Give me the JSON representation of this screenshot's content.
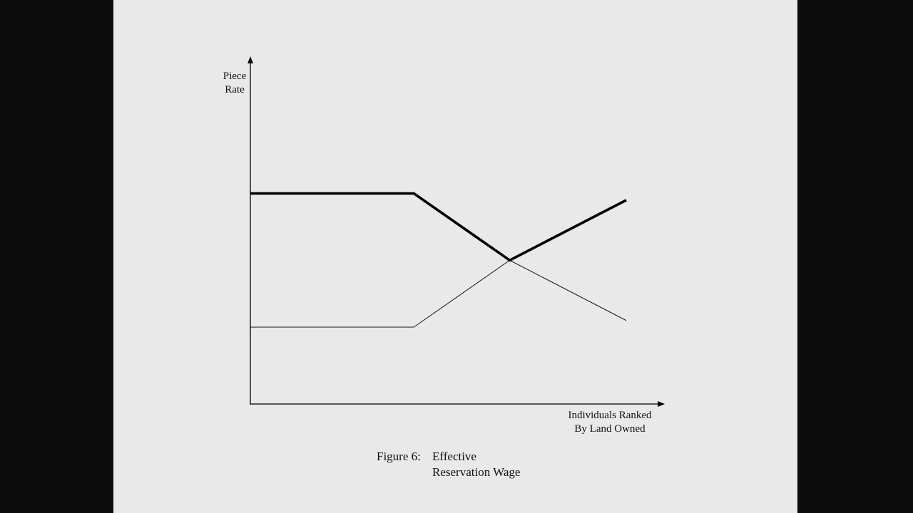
{
  "chart_data": {
    "type": "line",
    "title": "Figure 6:",
    "title_text": [
      "Effective",
      "Reservation Wage"
    ],
    "ylabel": [
      "Piece",
      "Rate"
    ],
    "xlabel": [
      "Individuals Ranked",
      "By Land Owned"
    ],
    "xlim": [
      0,
      100
    ],
    "ylim": [
      0,
      100
    ],
    "grid": false,
    "legend": "none",
    "series": [
      {
        "style": "bold",
        "x": [
          0,
          43.5,
          69,
          100
        ],
        "y": [
          63,
          63,
          43,
          61
        ]
      },
      {
        "style": "thin",
        "x": [
          0,
          43.5,
          69,
          100
        ],
        "y": [
          23,
          23,
          43,
          25
        ]
      }
    ]
  }
}
